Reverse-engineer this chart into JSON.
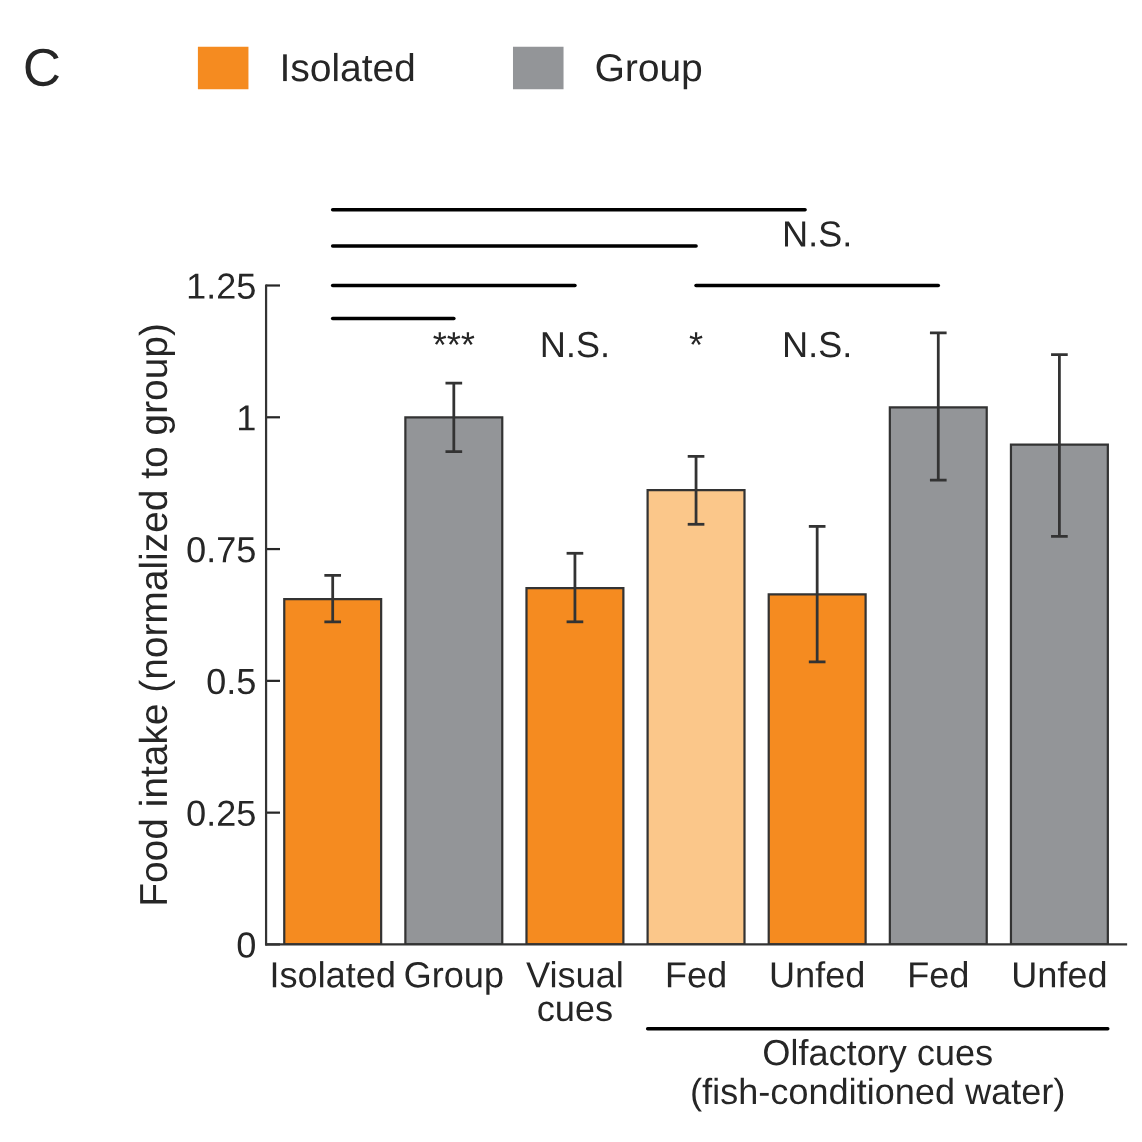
{
  "chart_data": {
    "type": "bar",
    "ylabel": "Food intake (normalized to group)",
    "categories": [
      "Isolated",
      "Group",
      "Visual\ncues",
      "Fed",
      "Unfed",
      "Fed",
      "Unfed"
    ],
    "series": [
      {
        "name": "Isolated",
        "color": "#f58b20",
        "colors": [
          "#f58b20",
          null,
          "#f58b20",
          "#fbc78a",
          "#f58b20",
          null,
          null
        ],
        "values": [
          0.655,
          null,
          0.676,
          0.862,
          0.664,
          null,
          null
        ],
        "errors": [
          [
            0.612,
            0.7
          ],
          null,
          [
            0.612,
            0.742
          ],
          [
            0.797,
            0.926
          ],
          [
            0.536,
            0.793
          ],
          null,
          null
        ]
      },
      {
        "name": "Group",
        "color": "#939598",
        "values": [
          null,
          1.0,
          null,
          null,
          null,
          1.019,
          0.948
        ],
        "errors": [
          null,
          [
            0.935,
            1.065
          ],
          null,
          null,
          null,
          [
            0.881,
            1.16
          ],
          [
            0.774,
            1.119
          ]
        ]
      }
    ],
    "ylim": [
      0,
      1.25
    ],
    "yticks": [
      0,
      0.25,
      0.5,
      0.75,
      1,
      1.25
    ],
    "grid": false,
    "legend": "top left",
    "annotations": [
      "C",
      "Olfactory cues\n(fish-conditioned water)",
      "***",
      "N.S.",
      "*",
      "N.S.",
      "N.S."
    ]
  }
}
